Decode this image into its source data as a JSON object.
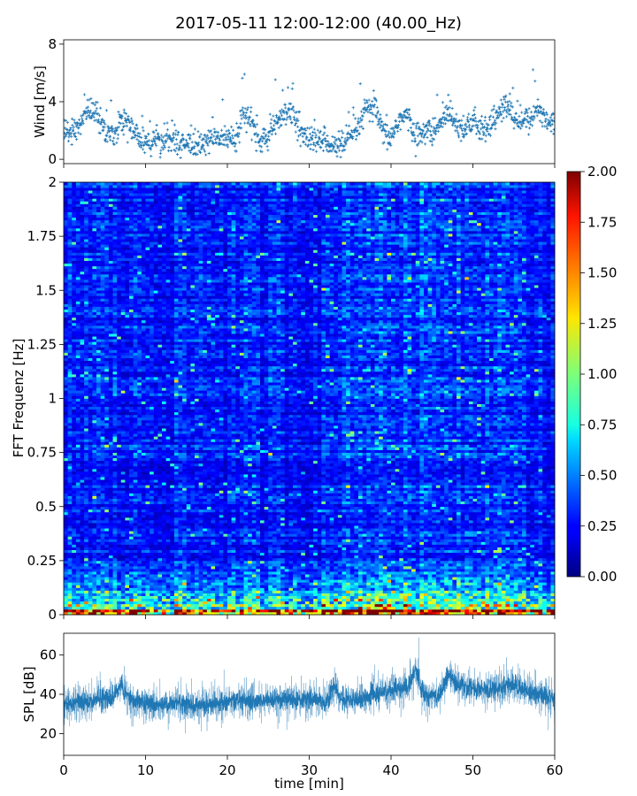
{
  "figure": {
    "title": "2017-05-11 12:00-12:00 (40.00_Hz)"
  },
  "chart_data": [
    {
      "type": "scatter",
      "panel": "wind",
      "ylabel": "Wind [m/s]",
      "xlabel": "",
      "xlim": [
        0,
        60
      ],
      "ylim": [
        -0.3,
        8.3
      ],
      "yticks": [
        0,
        4,
        8
      ],
      "ytick_labels": [
        "0",
        "4",
        "8"
      ],
      "xticks": [
        0,
        10,
        20,
        30,
        40,
        50,
        60
      ],
      "color": "#1f77b4",
      "marker": "+",
      "series": [
        {
          "x": [
            0,
            1,
            2,
            3,
            4,
            5,
            6,
            7,
            8,
            9,
            10,
            11,
            12,
            13,
            14,
            15,
            16,
            17,
            18,
            19,
            20,
            21,
            22,
            23,
            24,
            25,
            26,
            27,
            28,
            29,
            30,
            31,
            32,
            33,
            34,
            35,
            36,
            37,
            38,
            39,
            40,
            41,
            42,
            43,
            44,
            45,
            46,
            47,
            48,
            49,
            50,
            51,
            52,
            53,
            54,
            55,
            56,
            57,
            58,
            59,
            60
          ],
          "y": [
            2.0,
            1.8,
            2.5,
            3.6,
            3.2,
            2.0,
            1.5,
            2.8,
            2.6,
            1.5,
            1.2,
            1.4,
            1.3,
            1.5,
            1.2,
            1.0,
            1.0,
            1.1,
            1.4,
            1.5,
            1.5,
            1.5,
            3.2,
            2.5,
            1.2,
            1.6,
            2.5,
            3.5,
            3.0,
            1.8,
            1.4,
            1.2,
            1.5,
            0.8,
            1.0,
            1.5,
            2.2,
            3.5,
            3.6,
            1.8,
            1.5,
            2.8,
            3.0,
            1.5,
            2.0,
            1.8,
            2.5,
            3.5,
            2.5,
            2.2,
            2.6,
            2.0,
            2.4,
            3.0,
            3.8,
            3.0,
            2.6,
            2.8,
            3.5,
            2.8,
            2.5
          ]
        }
      ]
    },
    {
      "type": "heatmap",
      "panel": "spectrogram",
      "ylabel": "FFT Frequenz [Hz]",
      "xlabel": "",
      "xlim": [
        0,
        60
      ],
      "ylim": [
        0,
        2
      ],
      "yticks": [
        0,
        0.25,
        0.5,
        0.75,
        1,
        1.25,
        1.5,
        1.75,
        2
      ],
      "ytick_labels": [
        "0",
        "0.25",
        "0.5",
        "0.75",
        "1",
        "1.25",
        "1.5",
        "1.75",
        "2"
      ],
      "xticks": [
        0,
        10,
        20,
        30,
        40,
        50,
        60
      ],
      "colormap": "jet",
      "colorbar": {
        "vmin": 0.0,
        "vmax": 2.0,
        "ticks": [
          0.0,
          0.25,
          0.5,
          0.75,
          1.0,
          1.25,
          1.5,
          1.75,
          2.0
        ],
        "tick_labels": [
          "0.00",
          "0.25",
          "0.50",
          "0.75",
          "1.00",
          "1.25",
          "1.50",
          "1.75",
          "2.00"
        ]
      },
      "time_cols": 120,
      "freq_rows": 160,
      "mean_level": 0.3,
      "low_freq_band": {
        "max_freq": 0.25,
        "level": 0.9
      },
      "lowest_band": {
        "max_freq": 0.03,
        "level": 1.7
      }
    },
    {
      "type": "line",
      "panel": "spl",
      "ylabel": "SPL [dB]",
      "xlabel": "time [min]",
      "xlim": [
        0,
        60
      ],
      "ylim": [
        9,
        71
      ],
      "yticks": [
        20,
        40,
        60
      ],
      "ytick_labels": [
        "20",
        "40",
        "60"
      ],
      "xticks": [
        0,
        10,
        20,
        30,
        40,
        50,
        60
      ],
      "xtick_labels": [
        "0",
        "10",
        "20",
        "30",
        "40",
        "50",
        "60"
      ],
      "color": "#1f77b4",
      "series": [
        {
          "x": [
            0,
            2,
            4,
            6,
            7,
            8,
            10,
            12,
            14,
            16,
            18,
            20,
            22,
            24,
            26,
            28,
            30,
            32,
            33,
            34,
            36,
            38,
            40,
            42,
            43,
            44,
            46,
            47,
            48,
            50,
            52,
            54,
            55,
            56,
            58,
            60
          ],
          "y": [
            35,
            36,
            37,
            38,
            45,
            37,
            36,
            35,
            36,
            34,
            35,
            36,
            37,
            36,
            38,
            37,
            38,
            36,
            44,
            37,
            38,
            40,
            42,
            43,
            52,
            40,
            39,
            50,
            45,
            43,
            42,
            44,
            46,
            42,
            40,
            38
          ]
        }
      ]
    }
  ]
}
